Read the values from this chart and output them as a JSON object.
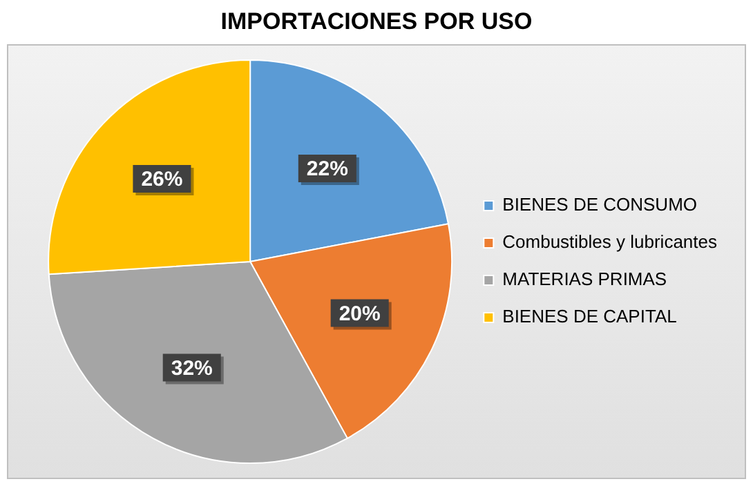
{
  "chart_data": {
    "type": "pie",
    "title": "IMPORTACIONES POR USO",
    "categories": [
      "BIENES DE CONSUMO",
      "Combustibles y lubricantes",
      "MATERIAS PRIMAS",
      "BIENES DE CAPITAL"
    ],
    "values": [
      22,
      20,
      32,
      26
    ],
    "value_labels": [
      "22%",
      "20%",
      "32%",
      "26%"
    ],
    "colors": [
      "#5b9bd5",
      "#ed7d31",
      "#a5a5a5",
      "#ffc000"
    ],
    "legend": "right"
  }
}
